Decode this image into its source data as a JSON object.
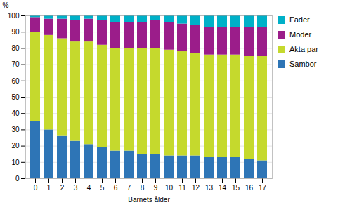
{
  "chart_data": {
    "type": "bar",
    "stacked": true,
    "xlabel": "Barnets ålder",
    "ylabel": "%",
    "categories": [
      "0",
      "1",
      "2",
      "3",
      "4",
      "5",
      "6",
      "7",
      "8",
      "9",
      "10",
      "11",
      "12",
      "13",
      "14",
      "15",
      "16",
      "17"
    ],
    "series": [
      {
        "name": "Sambor",
        "color": "#2E75B6",
        "values": [
          35,
          30,
          26,
          23,
          21,
          19,
          17,
          17,
          15,
          15,
          14,
          14,
          14,
          13,
          13,
          13,
          12,
          11
        ]
      },
      {
        "name": "Äkta par",
        "color": "#C5D92D",
        "values": [
          55,
          58,
          60,
          61,
          63,
          63,
          63,
          63,
          65,
          65,
          65,
          64,
          63,
          63,
          63,
          63,
          63,
          64
        ]
      },
      {
        "name": "Moder",
        "color": "#9B1D8A",
        "values": [
          9,
          10,
          12,
          13,
          14,
          15,
          16,
          16,
          16,
          17,
          17,
          17,
          17,
          17,
          17,
          17,
          18,
          18
        ]
      },
      {
        "name": "Fader",
        "color": "#00B0C8",
        "values": [
          1,
          2,
          2,
          3,
          2,
          3,
          4,
          4,
          4,
          3,
          4,
          5,
          6,
          7,
          7,
          7,
          7,
          7
        ]
      }
    ],
    "ylim": [
      0,
      100
    ],
    "yticks": [
      0,
      10,
      20,
      30,
      40,
      50,
      60,
      70,
      80,
      90,
      100
    ],
    "grid": true,
    "legend": "right"
  }
}
